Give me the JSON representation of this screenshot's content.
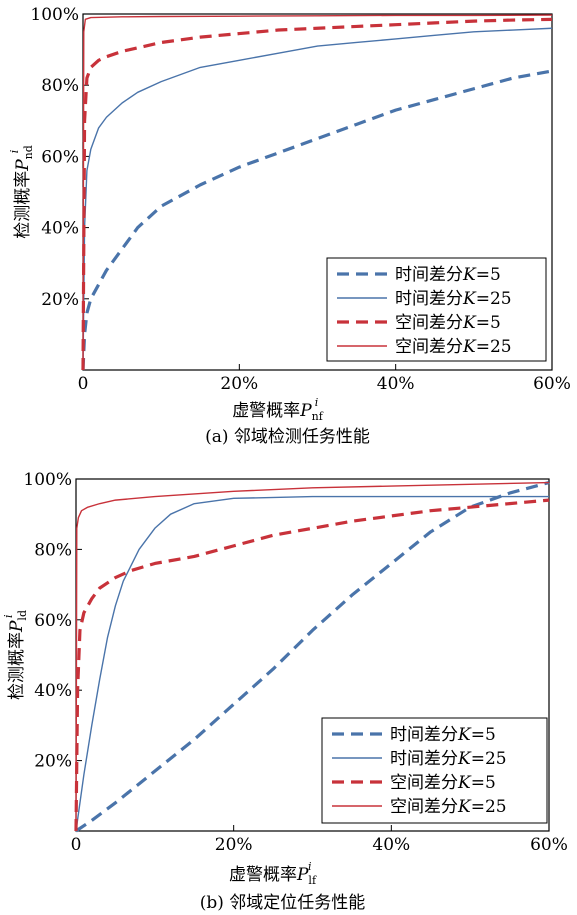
{
  "chart_data": [
    {
      "type": "line",
      "caption": "(a) 邻域检测任务性能",
      "xlabel": "虚警概率",
      "xlabel_symbol": "P",
      "xlabel_sub": "nf",
      "xlabel_sup": "i",
      "ylabel": "检测概率",
      "ylabel_symbol": "P",
      "ylabel_sub": "nd",
      "ylabel_sup": "i",
      "xlim": [
        0,
        60
      ],
      "ylim": [
        0,
        100
      ],
      "xticks": [
        0,
        20,
        40,
        60
      ],
      "xtick_labels": [
        "0",
        "20%",
        "40%",
        "60%"
      ],
      "yticks": [
        20,
        40,
        60,
        80,
        100
      ],
      "ytick_labels": [
        "20%",
        "40%",
        "60%",
        "80%",
        "100%"
      ],
      "grid": false,
      "legend_position": "bottom-right",
      "series": [
        {
          "name": "时间差分K=5",
          "label_prefix": "时间差分",
          "label_k": "K",
          "label_suffix": "=5",
          "color": "#4a74aa",
          "style": "dashed",
          "x": [
            0,
            0.2,
            0.5,
            1,
            2,
            3,
            5,
            7,
            10,
            15,
            20,
            25,
            30,
            35,
            40,
            45,
            50,
            55,
            60
          ],
          "y": [
            0,
            10,
            16,
            20,
            24,
            28,
            34,
            40,
            46,
            52,
            57,
            61,
            65,
            69,
            73,
            76,
            79,
            82,
            84
          ]
        },
        {
          "name": "时间差分K=25",
          "label_prefix": "时间差分",
          "label_k": "K",
          "label_suffix": "=25",
          "color": "#4a74aa",
          "style": "solid",
          "x": [
            0,
            0.2,
            0.5,
            1,
            2,
            3,
            5,
            7,
            10,
            15,
            20,
            25,
            30,
            35,
            40,
            45,
            50,
            55,
            60
          ],
          "y": [
            0,
            40,
            56,
            62,
            68,
            71,
            75,
            78,
            81,
            85,
            87,
            89,
            91,
            92,
            93,
            94,
            95,
            95.5,
            96
          ]
        },
        {
          "name": "空间差分K=5",
          "label_prefix": "空间差分",
          "label_k": "K",
          "label_suffix": "=5",
          "color": "#c8323a",
          "style": "dashed",
          "x": [
            0,
            0.2,
            0.5,
            1,
            2,
            3,
            5,
            7,
            10,
            15,
            20,
            25,
            30,
            35,
            40,
            45,
            50,
            55,
            60
          ],
          "y": [
            0,
            70,
            82,
            85,
            87,
            88,
            89.5,
            90.5,
            92,
            93.5,
            94.5,
            95.5,
            96,
            96.5,
            97,
            97.5,
            98,
            98.3,
            98.5
          ]
        },
        {
          "name": "空间差分K=25",
          "label_prefix": "空间差分",
          "label_k": "K",
          "label_suffix": "=25",
          "color": "#c8323a",
          "style": "solid",
          "x": [
            0,
            0.1,
            0.3,
            1,
            5,
            10,
            20,
            30,
            40,
            50,
            60
          ],
          "y": [
            0,
            95,
            98.5,
            99,
            99.2,
            99.3,
            99.4,
            99.5,
            99.6,
            99.6,
            99.7
          ]
        }
      ]
    },
    {
      "type": "line",
      "caption": "(b) 邻域定位任务性能",
      "xlabel": "虚警概率",
      "xlabel_symbol": "P",
      "xlabel_sub": "lf",
      "xlabel_sup": "i",
      "ylabel": "检测概率",
      "ylabel_symbol": "P",
      "ylabel_sub": "ld",
      "ylabel_sup": "i",
      "xlim": [
        0,
        60
      ],
      "ylim": [
        0,
        100
      ],
      "xticks": [
        0,
        20,
        40,
        60
      ],
      "xtick_labels": [
        "0",
        "20%",
        "40%",
        "60%"
      ],
      "yticks": [
        20,
        40,
        60,
        80,
        100
      ],
      "ytick_labels": [
        "20%",
        "40%",
        "60%",
        "80%",
        "100%"
      ],
      "grid": false,
      "legend_position": "bottom-right",
      "series": [
        {
          "name": "时间差分K=5",
          "label_prefix": "时间差分",
          "label_k": "K",
          "label_suffix": "=5",
          "color": "#4a74aa",
          "style": "dashed",
          "x": [
            0,
            2,
            5,
            10,
            15,
            20,
            25,
            30,
            35,
            40,
            45,
            50,
            55,
            60
          ],
          "y": [
            0,
            3,
            8,
            17,
            26,
            36,
            46,
            57,
            67,
            76,
            85,
            92,
            96,
            99
          ]
        },
        {
          "name": "时间差分K=25",
          "label_prefix": "时间差分",
          "label_k": "K",
          "label_suffix": "=25",
          "color": "#4a74aa",
          "style": "solid",
          "x": [
            0,
            1,
            2,
            3,
            4,
            5,
            6,
            8,
            10,
            12,
            15,
            20,
            30,
            40,
            50,
            60
          ],
          "y": [
            0,
            16,
            30,
            43,
            55,
            64,
            71,
            80,
            86,
            90,
            93,
            94.5,
            95,
            95,
            95,
            95
          ]
        },
        {
          "name": "空间差分K=5",
          "label_prefix": "空间差分",
          "label_k": "K",
          "label_suffix": "=5",
          "color": "#c8323a",
          "style": "dashed",
          "x": [
            0,
            0.2,
            0.5,
            1,
            2,
            3,
            5,
            7,
            10,
            15,
            20,
            25,
            30,
            35,
            40,
            45,
            50,
            55,
            60
          ],
          "y": [
            0,
            40,
            57,
            62,
            66,
            69,
            72,
            74,
            76,
            78,
            81,
            84,
            86,
            88,
            89.5,
            91,
            92,
            93,
            94
          ]
        },
        {
          "name": "空间差分K=25",
          "label_prefix": "空间差分",
          "label_k": "K",
          "label_suffix": "=25",
          "color": "#c8323a",
          "style": "solid",
          "x": [
            0,
            0.1,
            0.3,
            0.7,
            1.5,
            3,
            5,
            10,
            20,
            30,
            40,
            50,
            60
          ],
          "y": [
            0,
            86,
            89,
            91,
            92,
            93,
            94,
            95,
            96.5,
            97.5,
            98,
            98.5,
            99
          ]
        }
      ]
    }
  ]
}
